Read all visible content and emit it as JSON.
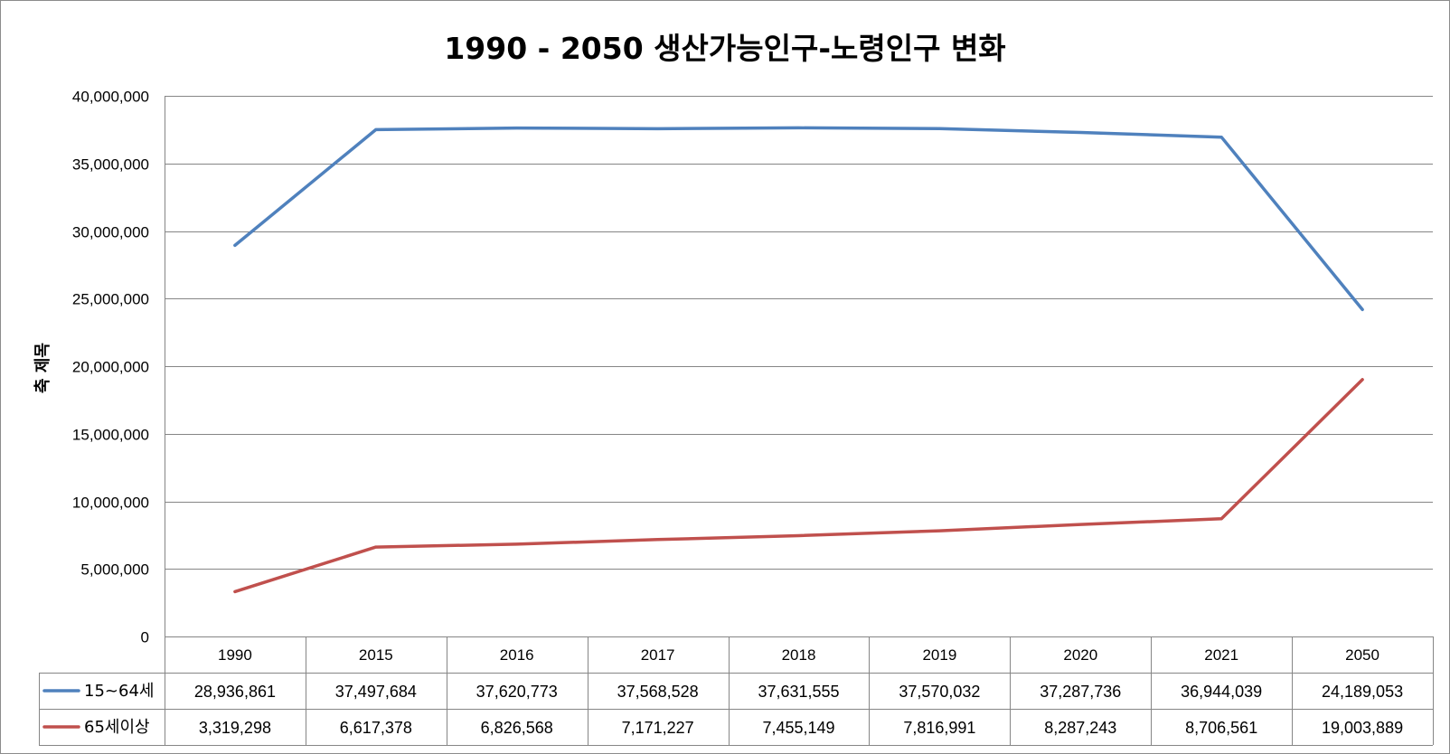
{
  "chart_data": {
    "type": "line",
    "title": "1990 - 2050 생산가능인구-노령인구 변화",
    "xlabel": "",
    "ylabel": "축 제목",
    "ylim": [
      0,
      40000000
    ],
    "yticks": [
      0,
      5000000,
      10000000,
      15000000,
      20000000,
      25000000,
      30000000,
      35000000,
      40000000
    ],
    "ytick_labels": [
      "0",
      "5,000,000",
      "10,000,000",
      "15,000,000",
      "20,000,000",
      "25,000,000",
      "30,000,000",
      "35,000,000",
      "40,000,000"
    ],
    "grid": true,
    "legend": "data-table",
    "categories": [
      "1990",
      "2015",
      "2016",
      "2017",
      "2018",
      "2019",
      "2020",
      "2021",
      "2050"
    ],
    "series": [
      {
        "name": "15~64세",
        "color": "#4f81bd",
        "values": [
          28936861,
          37497684,
          37620773,
          37568528,
          37631555,
          37570032,
          37287736,
          36944039,
          24189053
        ],
        "labels": [
          "28,936,861",
          "37,497,684",
          "37,620,773",
          "37,568,528",
          "37,631,555",
          "37,570,032",
          "37,287,736",
          "36,944,039",
          "24,189,053"
        ]
      },
      {
        "name": "65세이상",
        "color": "#c0504d",
        "values": [
          3319298,
          6617378,
          6826568,
          7171227,
          7455149,
          7816991,
          8287243,
          8706561,
          19003889
        ],
        "labels": [
          "3,319,298",
          "6,617,378",
          "6,826,568",
          "7,171,227",
          "7,455,149",
          "7,816,991",
          "8,287,243",
          "8,706,561",
          "19,003,889"
        ]
      }
    ]
  }
}
